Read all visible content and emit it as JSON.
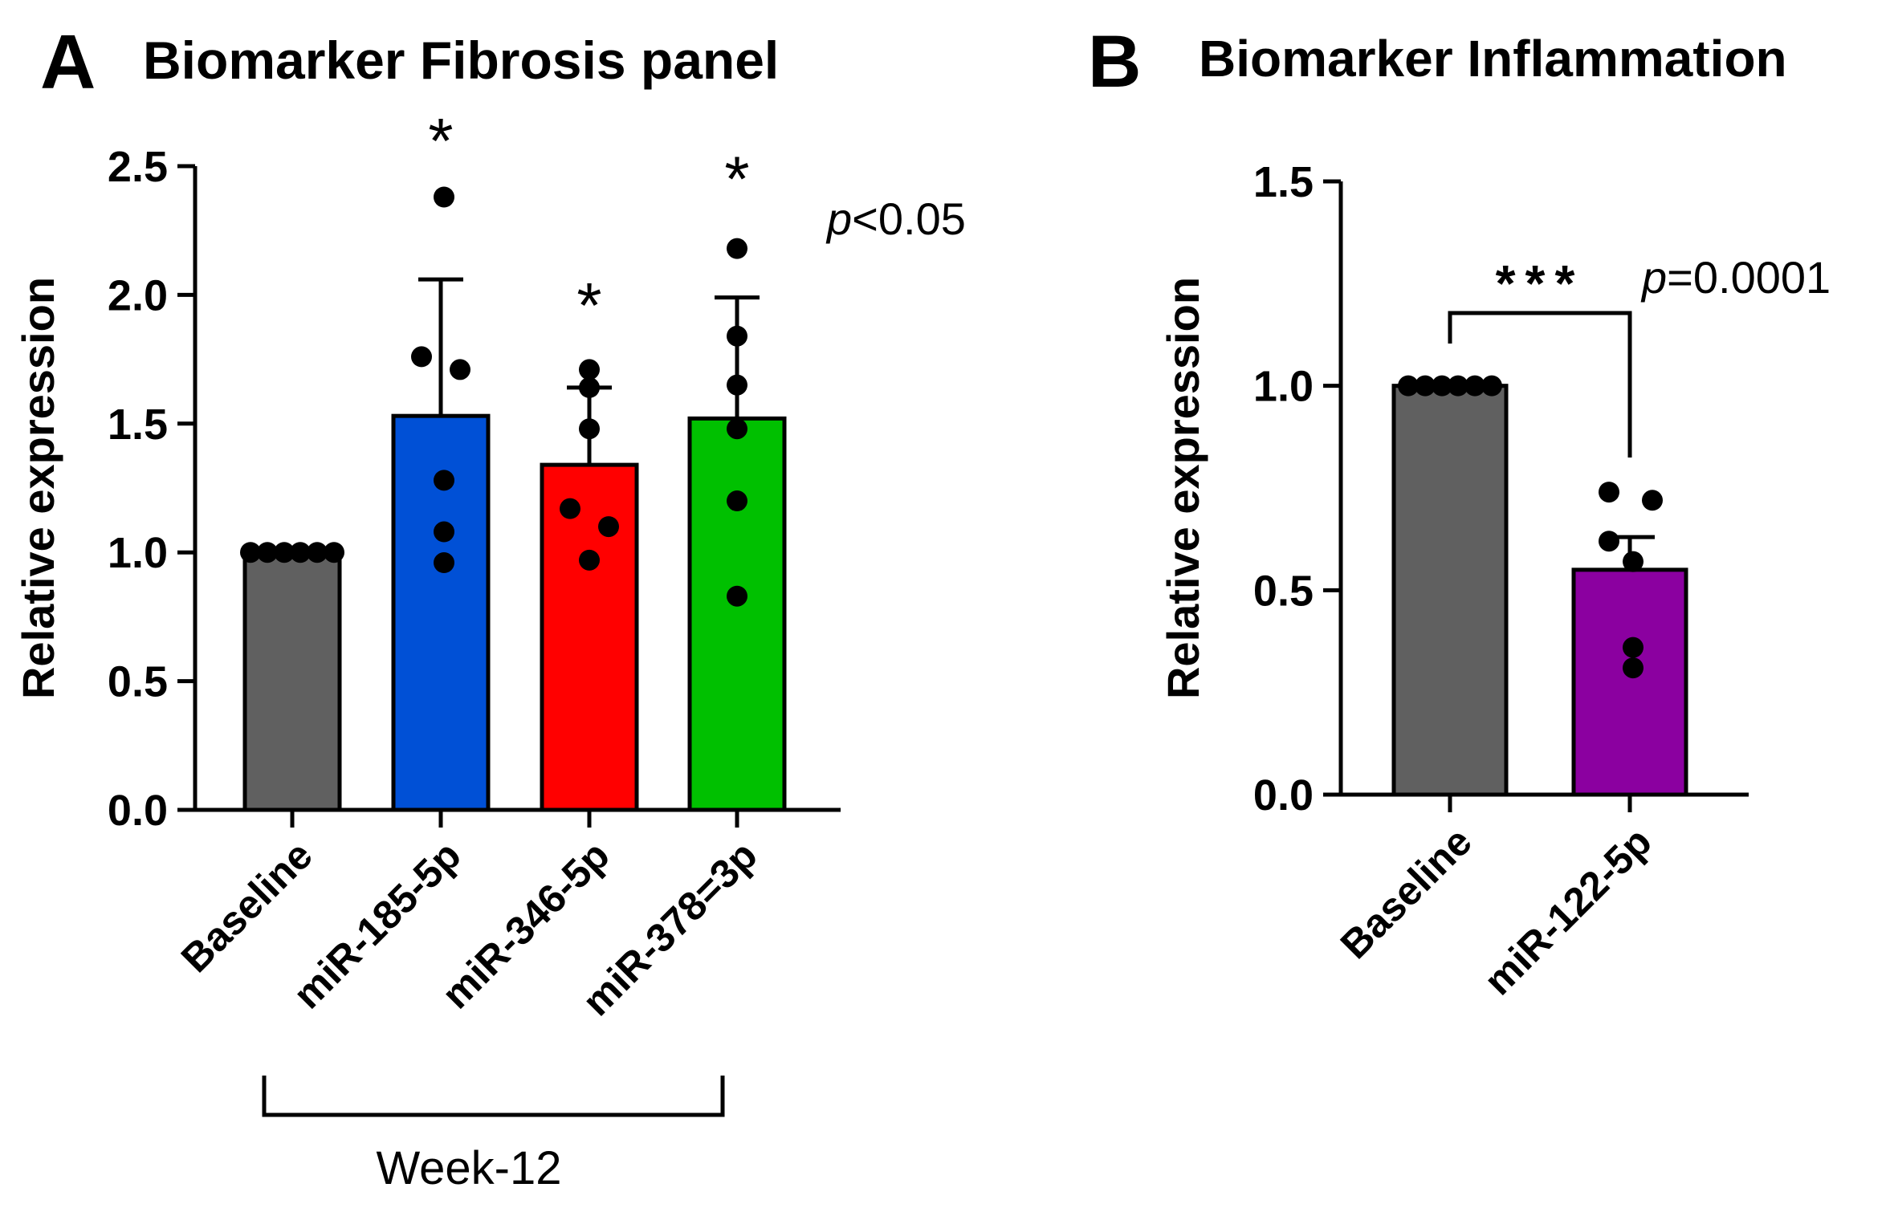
{
  "chart_data": [
    {
      "type": "bar",
      "panel_label": "A",
      "title": "Biomarker Fibrosis panel",
      "xlabel": "",
      "ylabel": "Relative expression",
      "ylim": [
        0,
        2.5
      ],
      "yticks": [
        0.0,
        0.5,
        1.0,
        1.5,
        2.0,
        2.5
      ],
      "ytick_labels": [
        "0.0",
        "0.5",
        "1.0",
        "1.5",
        "2.0",
        "2.5"
      ],
      "categories": [
        "Baseline",
        "miR-185-5p",
        "miR-346-5p",
        "miR-378=3p"
      ],
      "values": [
        1.0,
        1.53,
        1.34,
        1.52
      ],
      "error_upper": [
        1.0,
        2.06,
        1.64,
        1.99
      ],
      "colors": [
        "#606060",
        "#0050d6",
        "#ff0000",
        "#00c000"
      ],
      "points": [
        [
          1.0,
          1.0,
          1.0,
          1.0,
          1.0,
          1.0
        ],
        [
          2.38,
          1.76,
          1.71,
          1.28,
          1.08,
          0.96
        ],
        [
          1.71,
          1.64,
          1.48,
          1.17,
          1.1,
          0.97
        ],
        [
          2.18,
          1.84,
          1.65,
          1.48,
          1.2,
          0.83
        ]
      ],
      "significance": [
        "",
        "*",
        "*",
        "*"
      ],
      "p_prefix": "p",
      "p_text": "<0.05",
      "group_bracket_label": "Week-12"
    },
    {
      "type": "bar",
      "panel_label": "B",
      "title": "Biomarker Inflammation",
      "xlabel": "",
      "ylabel": "Relative expression",
      "ylim": [
        0,
        1.5
      ],
      "yticks": [
        0.0,
        0.5,
        1.0,
        1.5
      ],
      "ytick_labels": [
        "0.0",
        "0.5",
        "1.0",
        "1.5"
      ],
      "categories": [
        "Baseline",
        "miR-122-5p"
      ],
      "values": [
        1.0,
        0.55
      ],
      "error_upper": [
        1.0,
        0.63
      ],
      "colors": [
        "#606060",
        "#8b00a0"
      ],
      "points": [
        [
          1.0,
          1.0,
          1.0,
          1.0,
          1.0,
          1.0
        ],
        [
          0.74,
          0.72,
          0.62,
          0.57,
          0.36,
          0.31
        ]
      ],
      "significance_label": "***",
      "p_prefix": "p",
      "p_text": "=0.0001"
    }
  ]
}
